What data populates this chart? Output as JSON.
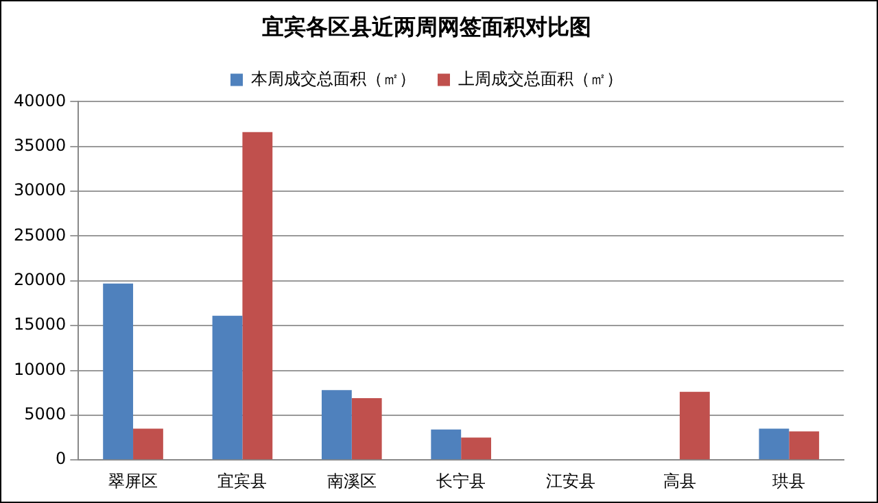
{
  "chart_data": {
    "type": "bar",
    "title": "宜宾各区县近两周网签面积对比图",
    "categories": [
      "翠屏区",
      "宜宾县",
      "南溪区",
      "长宁县",
      "江安县",
      "高县",
      "珙县"
    ],
    "series": [
      {
        "name": "本周成交总面积（㎡）",
        "color": "#4f81bd",
        "values": [
          19700,
          16100,
          7800,
          3400,
          0,
          null,
          3500
        ]
      },
      {
        "name": "上周成交总面积（㎡）",
        "color": "#c0504d",
        "values": [
          3500,
          36600,
          6900,
          2500,
          0,
          7600,
          3200
        ]
      }
    ],
    "ylim": [
      0,
      40000
    ],
    "yticks": [
      0,
      5000,
      10000,
      15000,
      20000,
      25000,
      30000,
      35000,
      40000
    ],
    "grid": "y",
    "legend": "top"
  }
}
